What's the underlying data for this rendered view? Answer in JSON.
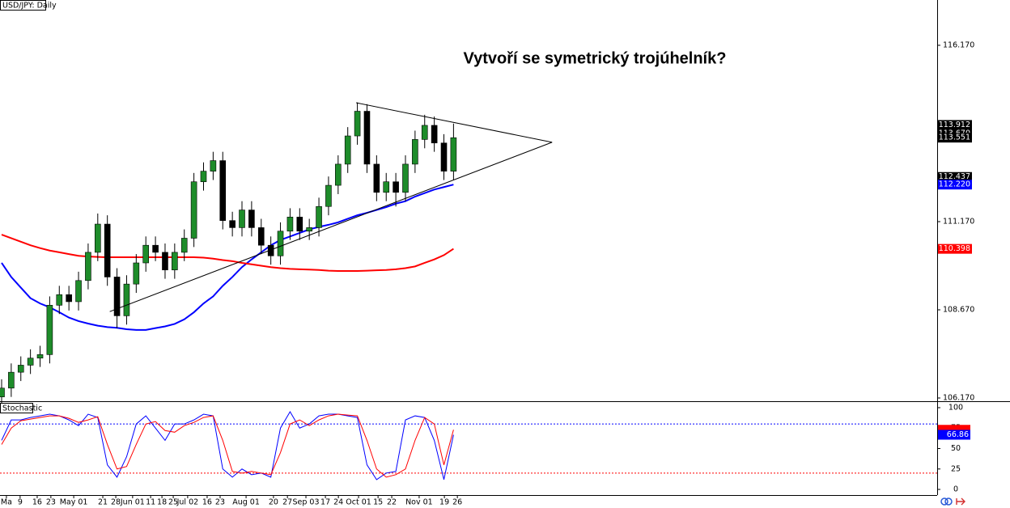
{
  "chart_data": [
    {
      "type": "candlestick",
      "title": "Vytvoří se symetrický trojúhelník?",
      "label": "USD/JPY: Daily",
      "x": [
        0,
        4,
        8,
        12,
        16,
        20,
        24,
        28,
        32,
        36,
        40,
        44,
        48,
        52,
        56,
        60,
        64,
        68,
        72,
        76,
        80,
        84,
        88,
        92,
        96,
        100,
        104,
        108,
        112,
        116,
        120,
        124,
        128,
        132,
        136,
        140,
        144,
        148,
        152,
        156,
        160,
        164,
        168,
        172,
        176,
        180,
        184,
        188
      ],
      "open": [
        106.2,
        106.45,
        106.9,
        107.1,
        107.3,
        107.4,
        108.8,
        109.1,
        108.9,
        109.5,
        110.3,
        111.1,
        109.6,
        108.5,
        109.4,
        110.0,
        110.5,
        110.3,
        109.8,
        110.3,
        110.7,
        112.3,
        112.6,
        112.9,
        111.2,
        111.0,
        111.5,
        111.0,
        110.5,
        110.2,
        110.9,
        111.3,
        110.9,
        111.0,
        111.6,
        112.2,
        112.8,
        113.6,
        114.3,
        112.8,
        112.0,
        112.3,
        112.0,
        112.8,
        113.5,
        113.9,
        113.4,
        112.6
      ],
      "high": [
        106.7,
        107.15,
        107.35,
        107.55,
        107.65,
        109.05,
        109.35,
        109.35,
        109.75,
        110.55,
        111.4,
        111.35,
        109.85,
        109.65,
        110.25,
        110.75,
        110.75,
        110.55,
        110.55,
        110.95,
        112.55,
        112.85,
        113.15,
        113.15,
        111.45,
        111.75,
        111.75,
        111.25,
        110.75,
        111.15,
        111.55,
        111.55,
        111.25,
        111.85,
        112.45,
        113.05,
        113.85,
        114.55,
        114.5,
        113.05,
        112.55,
        112.55,
        113.05,
        113.75,
        114.2,
        114.15,
        113.65,
        113.95
      ],
      "low": [
        105.95,
        106.2,
        106.65,
        106.85,
        107.05,
        107.15,
        108.55,
        108.65,
        108.65,
        109.25,
        110.05,
        109.35,
        108.15,
        108.25,
        109.15,
        109.75,
        110.05,
        109.55,
        109.55,
        110.05,
        110.45,
        112.05,
        112.35,
        110.95,
        110.75,
        110.75,
        110.75,
        110.25,
        109.95,
        109.95,
        110.65,
        110.65,
        110.65,
        110.75,
        111.35,
        111.95,
        112.55,
        113.35,
        112.55,
        111.75,
        111.75,
        111.6,
        111.75,
        112.55,
        113.25,
        113.15,
        112.35,
        112.35
      ],
      "close": [
        106.45,
        106.9,
        107.1,
        107.3,
        107.4,
        108.8,
        109.1,
        108.9,
        109.5,
        110.3,
        111.1,
        109.6,
        108.5,
        109.4,
        110.0,
        110.5,
        110.3,
        109.8,
        110.3,
        110.7,
        112.3,
        112.6,
        112.9,
        111.2,
        111.0,
        111.5,
        111.0,
        110.5,
        110.2,
        110.9,
        111.3,
        110.9,
        111.0,
        111.6,
        112.2,
        112.8,
        113.6,
        114.3,
        112.8,
        112.0,
        112.3,
        112.0,
        112.8,
        113.5,
        113.9,
        113.4,
        112.6,
        113.55
      ],
      "up_color": "#1e8c2a",
      "down_color": "#000000",
      "overlays": [
        {
          "color": "#0000ff",
          "values": [
            110.0,
            109.6,
            109.3,
            109.0,
            108.85,
            108.74,
            108.6,
            108.45,
            108.35,
            108.28,
            108.22,
            108.18,
            108.16,
            108.12,
            108.1,
            108.1,
            108.15,
            108.2,
            108.27,
            108.4,
            108.6,
            108.85,
            109.05,
            109.35,
            109.6,
            109.88,
            110.1,
            110.3,
            110.5,
            110.65,
            110.75,
            110.85,
            110.95,
            111.02,
            111.08,
            111.15,
            111.25,
            111.35,
            111.42,
            111.5,
            111.58,
            111.68,
            111.75,
            111.88,
            111.98,
            112.08,
            112.15,
            112.22
          ]
        },
        {
          "color": "#ff0000",
          "values": [
            110.8,
            110.7,
            110.6,
            110.5,
            110.42,
            110.35,
            110.3,
            110.25,
            110.2,
            110.18,
            110.17,
            110.16,
            110.16,
            110.16,
            110.16,
            110.16,
            110.16,
            110.16,
            110.16,
            110.16,
            110.16,
            110.15,
            110.12,
            110.08,
            110.05,
            110.0,
            109.96,
            109.92,
            109.88,
            109.85,
            109.83,
            109.82,
            109.81,
            109.8,
            109.78,
            109.77,
            109.77,
            109.77,
            109.78,
            109.79,
            109.8,
            109.82,
            109.85,
            109.9,
            110.0,
            110.1,
            110.22,
            110.4
          ]
        }
      ],
      "trendlines": [
        {
          "x": [
            45,
            229
          ],
          "y": [
            108.62,
            113.42
          ]
        },
        {
          "x": [
            147.5,
            229
          ],
          "y": [
            114.54,
            113.42
          ]
        }
      ],
      "xlim": [
        -0.67,
        389.2
      ],
      "ylim": [
        106.078,
        117.454
      ],
      "yticks": [
        {
          "value": 116.17,
          "label": "116.170"
        },
        {
          "value": 111.17,
          "label": "111.170"
        },
        {
          "value": 108.67,
          "label": "108.670"
        },
        {
          "value": 106.17,
          "label": "106.170"
        }
      ],
      "xticks": [
        {
          "value": 2.0,
          "label": "Ma"
        },
        {
          "value": 7.7,
          "label": "9"
        },
        {
          "value": 14.8,
          "label": "16"
        },
        {
          "value": 20.5,
          "label": "23"
        },
        {
          "value": 30.0,
          "label": "May 01"
        },
        {
          "value": 42.1,
          "label": "21"
        },
        {
          "value": 47.5,
          "label": "28"
        },
        {
          "value": 54.5,
          "label": "Jun 01"
        },
        {
          "value": 62.0,
          "label": "11"
        },
        {
          "value": 66.7,
          "label": "18"
        },
        {
          "value": 71.4,
          "label": "25"
        },
        {
          "value": 77.4,
          "label": "Jul 02"
        },
        {
          "value": 85.5,
          "label": "16"
        },
        {
          "value": 90.9,
          "label": "23"
        },
        {
          "value": 101.7,
          "label": "Aug 01"
        },
        {
          "value": 113.1,
          "label": "20"
        },
        {
          "value": 118.9,
          "label": "27"
        },
        {
          "value": 126.6,
          "label": "Sep 03"
        },
        {
          "value": 134.7,
          "label": "17"
        },
        {
          "value": 140.1,
          "label": "24"
        },
        {
          "value": 148.5,
          "label": "Oct 01"
        },
        {
          "value": 156.6,
          "label": "15"
        },
        {
          "value": 162.3,
          "label": "22"
        },
        {
          "value": 173.7,
          "label": "Nov 01"
        },
        {
          "value": 184.2,
          "label": "19"
        },
        {
          "value": 189.6,
          "label": "26"
        }
      ],
      "price_labels": [
        {
          "value": 113.67,
          "label": "113.670",
          "color": "#000000"
        },
        {
          "value": 113.912,
          "color": "#000000"
        },
        {
          "value": 113.551,
          "color": "#000000"
        },
        {
          "value": 112.437,
          "color": "#000000"
        },
        {
          "value": 112.22,
          "label": "112.220",
          "color": "#0000ff"
        },
        {
          "value": 110.398,
          "color": "#ff0000"
        }
      ]
    },
    {
      "type": "stochastic",
      "label": "Stochastic",
      "x": [
        0,
        4,
        8,
        12,
        16,
        20,
        24,
        28,
        32,
        36,
        40,
        44,
        48,
        52,
        56,
        60,
        64,
        68,
        72,
        76,
        80,
        84,
        88,
        92,
        96,
        100,
        104,
        108,
        112,
        116,
        120,
        124,
        128,
        132,
        136,
        140,
        144,
        148,
        152,
        156,
        160,
        164,
        168,
        172,
        176,
        180,
        184,
        188
      ],
      "series": [
        {
          "color": "#0000ff",
          "values": [
            60,
            85,
            85,
            88,
            90,
            92,
            90,
            85,
            78,
            92,
            88,
            30,
            15,
            40,
            80,
            90,
            75,
            60,
            80,
            80,
            85,
            92,
            90,
            25,
            15,
            25,
            18,
            20,
            15,
            75,
            95,
            75,
            80,
            90,
            92,
            92,
            90,
            88,
            30,
            12,
            20,
            22,
            85,
            90,
            88,
            60,
            12,
            66.86
          ]
        },
        {
          "color": "#ff0000",
          "values": [
            55,
            75,
            84,
            86,
            88,
            90,
            90,
            87,
            82,
            85,
            89,
            55,
            25,
            28,
            55,
            80,
            83,
            72,
            70,
            78,
            82,
            88,
            90,
            60,
            22,
            20,
            22,
            20,
            18,
            45,
            80,
            85,
            78,
            85,
            90,
            92,
            91,
            90,
            60,
            25,
            15,
            18,
            25,
            60,
            88,
            80,
            30,
            73
          ]
        }
      ],
      "xlim": [
        -0.67,
        389.2
      ],
      "ylim": [
        -6.9,
        106.9
      ],
      "yticks": [
        100,
        75,
        50,
        25,
        0
      ],
      "levels": [
        {
          "value": 80,
          "color": "#0000ff"
        },
        {
          "value": 20,
          "color": "#ff0000"
        }
      ],
      "value_labels": [
        {
          "value": 66.86,
          "color": "#0000ff"
        }
      ]
    }
  ]
}
